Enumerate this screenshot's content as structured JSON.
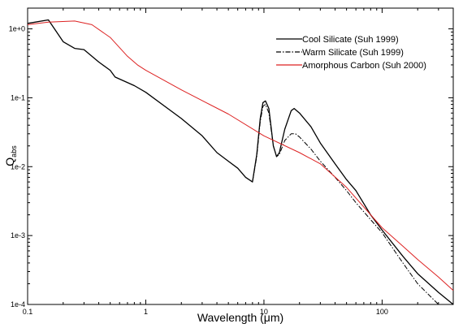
{
  "chart_data": {
    "type": "line",
    "title": "",
    "xlabel": "Wavelength (μm)",
    "ylabel_main": "Q",
    "ylabel_sub": "abs",
    "xscale": "log",
    "yscale": "log",
    "xlim": [
      0.1,
      400
    ],
    "ylim": [
      0.0001,
      2
    ],
    "grid": false,
    "legend_position": "top-right",
    "x_ticks": [
      {
        "value": 0.1,
        "label": "0.1"
      },
      {
        "value": 1,
        "label": "1"
      },
      {
        "value": 10,
        "label": "10"
      },
      {
        "value": 100,
        "label": "100"
      }
    ],
    "y_ticks": [
      {
        "value": 1,
        "label": "1e+0"
      },
      {
        "value": 0.1,
        "label": "1e-1"
      },
      {
        "value": 0.01,
        "label": "1e-2"
      },
      {
        "value": 0.001,
        "label": "1e-3"
      },
      {
        "value": 0.0001,
        "label": "1e-4"
      }
    ],
    "series": [
      {
        "name": "Cool Silicate (Suh 1999)",
        "color": "#000000",
        "dash": "solid",
        "points": [
          [
            0.1,
            1.2
          ],
          [
            0.15,
            1.35
          ],
          [
            0.2,
            0.65
          ],
          [
            0.25,
            0.52
          ],
          [
            0.3,
            0.5
          ],
          [
            0.4,
            0.33
          ],
          [
            0.5,
            0.25
          ],
          [
            0.55,
            0.2
          ],
          [
            0.8,
            0.15
          ],
          [
            1.0,
            0.12
          ],
          [
            2.0,
            0.05
          ],
          [
            3.0,
            0.028
          ],
          [
            4.0,
            0.016
          ],
          [
            5.0,
            0.012
          ],
          [
            6.0,
            0.0095
          ],
          [
            7.0,
            0.007
          ],
          [
            8.0,
            0.006
          ],
          [
            8.7,
            0.015
          ],
          [
            9.3,
            0.05
          ],
          [
            9.8,
            0.085
          ],
          [
            10.3,
            0.09
          ],
          [
            11.0,
            0.07
          ],
          [
            12.0,
            0.02
          ],
          [
            12.8,
            0.014
          ],
          [
            13.5,
            0.016
          ],
          [
            15.0,
            0.035
          ],
          [
            17.0,
            0.065
          ],
          [
            18.0,
            0.07
          ],
          [
            20.0,
            0.06
          ],
          [
            25.0,
            0.038
          ],
          [
            30.0,
            0.022
          ],
          [
            40.0,
            0.011
          ],
          [
            50.0,
            0.0065
          ],
          [
            60.0,
            0.0045
          ],
          [
            80.0,
            0.002
          ],
          [
            100.0,
            0.0012
          ],
          [
            150.0,
            0.0005
          ],
          [
            200.0,
            0.00028
          ],
          [
            300.0,
            0.00015
          ],
          [
            400.0,
            0.0001
          ]
        ]
      },
      {
        "name": "Warm Silicate (Suh 1999)",
        "color": "#000000",
        "dash": "dashdot",
        "points": [
          [
            8.0,
            0.006
          ],
          [
            8.7,
            0.014
          ],
          [
            9.3,
            0.045
          ],
          [
            9.8,
            0.075
          ],
          [
            10.3,
            0.08
          ],
          [
            11.0,
            0.06
          ],
          [
            12.0,
            0.02
          ],
          [
            12.8,
            0.014
          ],
          [
            13.5,
            0.015
          ],
          [
            15.0,
            0.024
          ],
          [
            17.0,
            0.03
          ],
          [
            18.5,
            0.03
          ],
          [
            20.0,
            0.027
          ],
          [
            25.0,
            0.018
          ],
          [
            30.0,
            0.012
          ],
          [
            40.0,
            0.007
          ],
          [
            50.0,
            0.0045
          ],
          [
            60.0,
            0.003
          ],
          [
            80.0,
            0.0017
          ],
          [
            100.0,
            0.0011
          ],
          [
            150.0,
            0.0004
          ],
          [
            200.0,
            0.0002
          ],
          [
            300.0,
            0.0001
          ]
        ]
      },
      {
        "name": "Amorphous Carbon (Suh 2000)",
        "color": "#dd2222",
        "dash": "solid",
        "points": [
          [
            0.1,
            1.15
          ],
          [
            0.15,
            1.25
          ],
          [
            0.25,
            1.3
          ],
          [
            0.35,
            1.15
          ],
          [
            0.5,
            0.75
          ],
          [
            0.7,
            0.4
          ],
          [
            0.85,
            0.3
          ],
          [
            1.0,
            0.25
          ],
          [
            2.0,
            0.13
          ],
          [
            5.0,
            0.058
          ],
          [
            10.0,
            0.028
          ],
          [
            20.0,
            0.016
          ],
          [
            30.0,
            0.011
          ],
          [
            50.0,
            0.005
          ],
          [
            100.0,
            0.0013
          ],
          [
            150.0,
            0.0007
          ],
          [
            200.0,
            0.00045
          ],
          [
            300.0,
            0.00025
          ],
          [
            400.0,
            0.00016
          ]
        ]
      }
    ]
  }
}
